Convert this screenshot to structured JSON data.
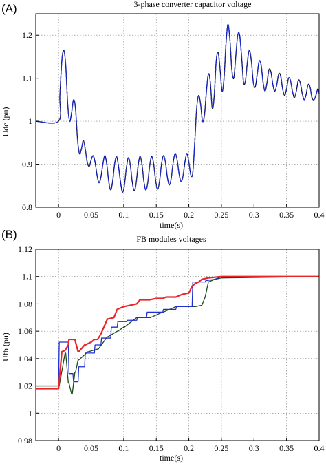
{
  "chart_data": [
    {
      "type": "line",
      "panel_label": "(A)",
      "title": "3-phase converter capacitor voltage",
      "xlabel": "time(s)",
      "ylabel": "Udc (pu)",
      "xlim": [
        -0.035,
        0.4
      ],
      "ylim": [
        0.8,
        1.25
      ],
      "grid": true,
      "xtick_labels": [
        "0",
        "0.05",
        "0.1",
        "0.15",
        "0.2",
        "0.25",
        "0.3",
        "0.35",
        "0.4"
      ],
      "ytick_labels": [
        "0.8",
        "0.9",
        "1",
        "1.1",
        "1.2"
      ],
      "series": [
        {
          "color": "#1f2fd0",
          "style": "dashed",
          "x": [
            -0.035,
            0.0,
            0.002,
            0.005,
            0.008,
            0.011,
            0.014,
            0.017,
            0.02,
            0.023,
            0.026,
            0.029,
            0.032,
            0.035,
            0.038,
            0.041,
            0.044,
            0.047,
            0.05,
            0.053,
            0.056,
            0.059,
            0.062,
            0.065,
            0.068,
            0.071,
            0.074,
            0.077,
            0.08,
            0.083,
            0.086,
            0.089,
            0.092,
            0.095,
            0.098,
            0.101,
            0.104,
            0.107,
            0.11,
            0.113,
            0.116,
            0.119,
            0.122,
            0.125,
            0.128,
            0.131,
            0.134,
            0.137,
            0.14,
            0.143,
            0.146,
            0.149,
            0.152,
            0.155,
            0.158,
            0.161,
            0.164,
            0.167,
            0.17,
            0.173,
            0.176,
            0.179,
            0.182,
            0.185,
            0.188,
            0.191,
            0.194,
            0.197,
            0.2,
            0.203,
            0.206,
            0.209,
            0.212,
            0.215,
            0.218,
            0.221,
            0.224,
            0.227,
            0.23,
            0.233,
            0.236,
            0.239,
            0.242,
            0.245,
            0.248,
            0.251,
            0.254,
            0.257,
            0.26,
            0.263,
            0.266,
            0.269,
            0.272,
            0.275,
            0.278,
            0.281,
            0.284,
            0.287,
            0.29,
            0.293,
            0.296,
            0.299,
            0.302,
            0.305,
            0.308,
            0.311,
            0.314,
            0.317,
            0.32,
            0.323,
            0.326,
            0.329,
            0.332,
            0.335,
            0.338,
            0.341,
            0.344,
            0.347,
            0.35,
            0.353,
            0.356,
            0.359,
            0.362,
            0.365,
            0.368,
            0.371,
            0.374,
            0.377,
            0.38,
            0.383,
            0.386,
            0.389,
            0.392,
            0.395,
            0.398,
            0.4
          ],
          "y": [
            1.0,
            1.0,
            1.06,
            1.14,
            1.165,
            1.13,
            1.04,
            1.0,
            1.02,
            1.05,
            1.03,
            0.96,
            0.925,
            0.935,
            0.955,
            0.935,
            0.905,
            0.895,
            0.91,
            0.92,
            0.905,
            0.875,
            0.857,
            0.87,
            0.9,
            0.92,
            0.9,
            0.86,
            0.84,
            0.86,
            0.9,
            0.918,
            0.895,
            0.86,
            0.835,
            0.85,
            0.89,
            0.915,
            0.9,
            0.86,
            0.838,
            0.855,
            0.895,
            0.918,
            0.9,
            0.86,
            0.84,
            0.858,
            0.898,
            0.918,
            0.9,
            0.862,
            0.842,
            0.86,
            0.9,
            0.92,
            0.905,
            0.87,
            0.852,
            0.868,
            0.905,
            0.925,
            0.91,
            0.878,
            0.86,
            0.872,
            0.905,
            0.925,
            0.905,
            0.875,
            0.88,
            0.95,
            1.03,
            1.06,
            1.04,
            1.0,
            1.015,
            1.07,
            1.11,
            1.09,
            1.03,
            1.06,
            1.14,
            1.16,
            1.12,
            1.07,
            1.1,
            1.18,
            1.225,
            1.19,
            1.12,
            1.1,
            1.15,
            1.2,
            1.2,
            1.15,
            1.09,
            1.095,
            1.14,
            1.165,
            1.14,
            1.09,
            1.08,
            1.11,
            1.14,
            1.13,
            1.09,
            1.07,
            1.09,
            1.12,
            1.115,
            1.085,
            1.07,
            1.085,
            1.11,
            1.105,
            1.075,
            1.06,
            1.075,
            1.1,
            1.095,
            1.07,
            1.055,
            1.07,
            1.095,
            1.09,
            1.065,
            1.05,
            1.062,
            1.085,
            1.08,
            1.055,
            1.05,
            1.06,
            1.075,
            1.065
          ]
        }
      ]
    },
    {
      "type": "line",
      "panel_label": "(B)",
      "title": "FB modules voltages",
      "xlabel": "time(s)",
      "ylabel": "Ufb (pu)",
      "xlim": [
        -0.035,
        0.4
      ],
      "ylim": [
        0.98,
        1.12
      ],
      "grid": true,
      "xtick_labels": [
        "0",
        "0.05",
        "0.1",
        "0.15",
        "0.2",
        "0.25",
        "0.3",
        "0.35",
        "0.4"
      ],
      "ytick_labels": [
        "0.98",
        "1",
        "1.02",
        "1.04",
        "1.06",
        "1.08",
        "1.1",
        "1.12"
      ],
      "series": [
        {
          "color": "#1a4a1a",
          "x": [
            -0.035,
            0.0,
            0.001,
            0.01,
            0.011,
            0.015,
            0.016,
            0.02,
            0.021,
            0.025,
            0.026,
            0.03,
            0.031,
            0.045,
            0.046,
            0.06,
            0.061,
            0.075,
            0.076,
            0.09,
            0.091,
            0.1,
            0.101,
            0.12,
            0.121,
            0.14,
            0.141,
            0.16,
            0.161,
            0.18,
            0.181,
            0.2,
            0.21,
            0.22,
            0.225,
            0.23,
            0.24,
            0.25,
            0.4
          ],
          "y": [
            1.02,
            1.02,
            1.02,
            1.044,
            1.044,
            1.022,
            1.022,
            1.014,
            1.014,
            1.03,
            1.03,
            1.039,
            1.039,
            1.045,
            1.045,
            1.047,
            1.047,
            1.056,
            1.056,
            1.06,
            1.06,
            1.063,
            1.063,
            1.07,
            1.07,
            1.07,
            1.07,
            1.074,
            1.074,
            1.078,
            1.078,
            1.078,
            1.078,
            1.079,
            1.085,
            1.096,
            1.098,
            1.099,
            1.1
          ]
        },
        {
          "color": "#1f2fd0",
          "x": [
            -0.035,
            0.0,
            0.001,
            0.015,
            0.016,
            0.022,
            0.023,
            0.03,
            0.031,
            0.04,
            0.041,
            0.055,
            0.056,
            0.065,
            0.066,
            0.08,
            0.081,
            0.09,
            0.091,
            0.105,
            0.106,
            0.12,
            0.121,
            0.135,
            0.136,
            0.16,
            0.161,
            0.18,
            0.181,
            0.205,
            0.206,
            0.21,
            0.211,
            0.225,
            0.226,
            0.24,
            0.25,
            0.4
          ],
          "y": [
            1.018,
            1.018,
            1.052,
            1.052,
            1.029,
            1.029,
            1.023,
            1.023,
            1.034,
            1.034,
            1.044,
            1.044,
            1.05,
            1.05,
            1.055,
            1.055,
            1.063,
            1.063,
            1.067,
            1.067,
            1.068,
            1.068,
            1.07,
            1.07,
            1.074,
            1.074,
            1.076,
            1.076,
            1.078,
            1.078,
            1.096,
            1.096,
            1.096,
            1.096,
            1.097,
            1.098,
            1.1,
            1.1
          ]
        },
        {
          "color": "#e8262a",
          "x": [
            -0.035,
            0.0,
            0.005,
            0.01,
            0.015,
            0.016,
            0.02,
            0.025,
            0.03,
            0.031,
            0.04,
            0.041,
            0.05,
            0.055,
            0.06,
            0.065,
            0.075,
            0.076,
            0.085,
            0.09,
            0.095,
            0.1,
            0.11,
            0.12,
            0.125,
            0.14,
            0.15,
            0.16,
            0.165,
            0.18,
            0.19,
            0.2,
            0.205,
            0.21,
            0.215,
            0.22,
            0.23,
            0.25,
            0.4
          ],
          "y": [
            1.018,
            1.018,
            1.045,
            1.046,
            1.05,
            1.054,
            1.054,
            1.054,
            1.045,
            1.045,
            1.05,
            1.05,
            1.052,
            1.054,
            1.054,
            1.058,
            1.069,
            1.069,
            1.07,
            1.076,
            1.077,
            1.078,
            1.079,
            1.08,
            1.083,
            1.083,
            1.084,
            1.084,
            1.085,
            1.085,
            1.087,
            1.088,
            1.093,
            1.095,
            1.096,
            1.098,
            1.099,
            1.1,
            1.1
          ]
        }
      ]
    }
  ]
}
